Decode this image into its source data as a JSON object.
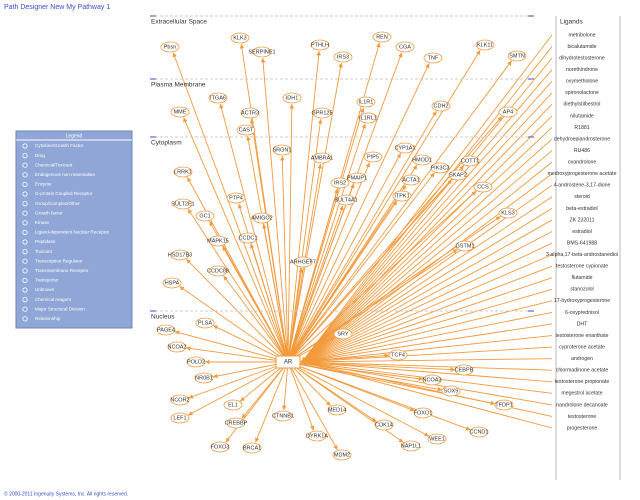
{
  "header": {
    "title": "Path Designer New My Pathway 1"
  },
  "compartments": [
    "Extracellular Space",
    "Plasma Membrane",
    "Cytoplasm",
    "Nucleus"
  ],
  "legend": {
    "title": "Legend",
    "items": [
      "Cytokine/Growth Factor",
      "Drug",
      "Chemical/Toxicant",
      "Endogenous non-mammalian",
      "Enzyme",
      "G-protein Coupled Receptor",
      "Group/Complex/Other",
      "Growth factor",
      "Kinase",
      "Ligand-dependent Nuclear Receptor",
      "Peptidase",
      "Toxicant",
      "Transcription Regulator",
      "Transmembrane Receptor",
      "Transporter",
      "Unknown",
      "Chemical reagent",
      "Major Structural Division",
      "Relationship"
    ]
  },
  "hub": {
    "label": "AR"
  },
  "nodes": [
    {
      "label": "Pbsn"
    },
    {
      "label": "KLK3"
    },
    {
      "label": "SERPINE1"
    },
    {
      "label": "PTHLH"
    },
    {
      "label": "IRS3"
    },
    {
      "label": "REN"
    },
    {
      "label": "CGA"
    },
    {
      "label": "TNF"
    },
    {
      "label": "KLK11"
    },
    {
      "label": "SMTN"
    },
    {
      "label": "MME"
    },
    {
      "label": "ITGA6"
    },
    {
      "label": "ACTR3"
    },
    {
      "label": "IDH1"
    },
    {
      "label": "GPR125"
    },
    {
      "label": "IL1R1"
    },
    {
      "label": "IL1RL1"
    },
    {
      "label": "CDH2"
    },
    {
      "label": "AP4"
    },
    {
      "label": "LRRK1"
    },
    {
      "label": "CAST"
    },
    {
      "label": "SRGN1"
    },
    {
      "label": "AMBRA1"
    },
    {
      "label": "PIP5"
    },
    {
      "label": "CYP1A1"
    },
    {
      "label": "HMOD1"
    },
    {
      "label": "PMAIP1"
    },
    {
      "label": "IRS2"
    },
    {
      "label": "ACTA1"
    },
    {
      "label": "PIK3C3"
    },
    {
      "label": "SKAP2"
    },
    {
      "label": "COTT1"
    },
    {
      "label": "CCS"
    },
    {
      "label": "SULT2E1"
    },
    {
      "label": "GC1"
    },
    {
      "label": "PTP4"
    },
    {
      "label": "AMIGO2"
    },
    {
      "label": "ITPK1"
    },
    {
      "label": "SULT4A1"
    },
    {
      "label": "KLS3"
    },
    {
      "label": "MAPK15"
    },
    {
      "label": "CCDC1"
    },
    {
      "label": "ARHGEF7"
    },
    {
      "label": "HSD17B3"
    },
    {
      "label": "CCDC88"
    },
    {
      "label": "HSPA"
    },
    {
      "label": "GSTM1"
    },
    {
      "label": "PAGE4"
    },
    {
      "label": "PLSA"
    },
    {
      "label": "NCOA2"
    },
    {
      "label": "POLD2"
    },
    {
      "label": "NR0B1"
    },
    {
      "label": "NCOR2"
    },
    {
      "label": "LEF1"
    },
    {
      "label": "EL1"
    },
    {
      "label": "CREBBP"
    },
    {
      "label": "CTNNB1"
    },
    {
      "label": "FOXO3"
    },
    {
      "label": "BRCA1"
    },
    {
      "label": "DYRK1A"
    },
    {
      "label": "MDM2"
    },
    {
      "label": "MED14"
    },
    {
      "label": "CDK14"
    },
    {
      "label": "NAP1L1"
    },
    {
      "label": "WEE1"
    },
    {
      "label": "FOXO1"
    },
    {
      "label": "CCND1"
    },
    {
      "label": "SRY"
    },
    {
      "label": "TCF4"
    },
    {
      "label": "CEBPB"
    },
    {
      "label": "NCOA3"
    },
    {
      "label": "SOX9"
    },
    {
      "label": "TFDP1"
    }
  ],
  "ligands": {
    "title": "Ligands",
    "items": [
      "metribolone",
      "bicalutamide",
      "dihydrotestosterone",
      "norethindrone",
      "oxymetholone",
      "spironolactone",
      "diethylstilbestrol",
      "nilutamide",
      "R1881",
      "dehydroepiandrosterone",
      "RU486",
      "oxandrolone",
      "medroxyprogesterone acetate",
      "4-androstene-3,17-dione",
      "steroid",
      "beta-estradiol",
      "ZK 232011",
      "estradiol",
      "BMS-641988",
      "3-alpha,17-beta-androstanediol",
      "testosterone cypionate",
      "flutamide",
      "stanozolol",
      "17-hydroxyprogesterone",
      "6-oxyprednisol",
      "DHT",
      "testosterone enanthate",
      "cyproterone acetate",
      "androgen",
      "chlormadinone acetate",
      "testosterone propionate",
      "megestrol acetate",
      "nandrolone decanoate",
      "testosterone",
      "progesterone"
    ]
  },
  "footer": "© 2000-2011 Ingenuity Systems, Inc. All rights reserved."
}
